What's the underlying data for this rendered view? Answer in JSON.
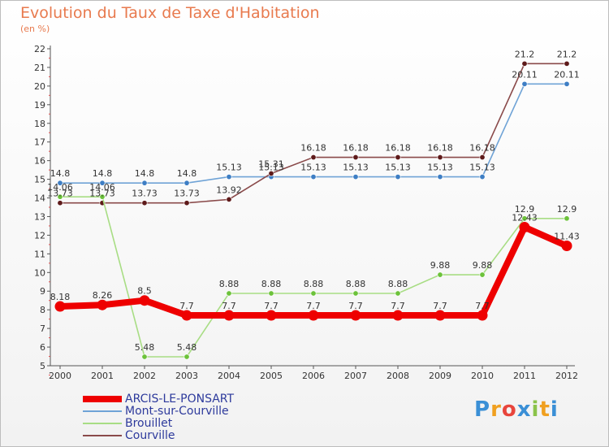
{
  "title": "Evolution du Taux de Taxe d'Habitation",
  "subtitle": "(en %)",
  "logo": {
    "text": "Proxiti",
    "colors": [
      "#3a8fd6",
      "#f0a020",
      "#e8453c",
      "#3a8fd6",
      "#8bc34a",
      "#f0a020",
      "#3a8fd6"
    ]
  },
  "chart_data": {
    "type": "line",
    "title": "Evolution du Taux de Taxe d'Habitation",
    "ylabel": "(en %)",
    "xlabel": "",
    "ylim": [
      5,
      22
    ],
    "yticks": [
      "5",
      "6",
      "7",
      "8",
      "9",
      "10",
      "11",
      "12",
      "13",
      "14",
      "15",
      "16",
      "17",
      "18",
      "19",
      "20",
      "21",
      "22"
    ],
    "categories": [
      "2000",
      "2001",
      "2002",
      "2003",
      "2004",
      "2005",
      "2006",
      "2007",
      "2008",
      "2009",
      "2010",
      "2011",
      "2012"
    ],
    "series": [
      {
        "name": "ARCIS-LE-PONSART",
        "color": "#ee0000",
        "thick": true,
        "values": [
          8.18,
          8.26,
          8.5,
          7.7,
          7.7,
          7.7,
          7.7,
          7.7,
          7.7,
          7.7,
          7.7,
          12.43,
          11.43
        ],
        "labels": [
          "8.18",
          "8.26",
          "8.5",
          "7.7",
          "7.7",
          "7.7",
          "7.7",
          "7.7",
          "7.7",
          "7.7",
          "7.7",
          "12.43",
          "11.43"
        ]
      },
      {
        "name": "Mont-sur-Courville",
        "color": "#6fa3d6",
        "dot": "#3e7ec4",
        "values": [
          14.8,
          14.8,
          14.8,
          14.8,
          15.13,
          15.13,
          15.13,
          15.13,
          15.13,
          15.13,
          15.13,
          20.11,
          20.11
        ],
        "labels": [
          "14.8",
          "14.8",
          "14.8",
          "14.8",
          "15.13",
          "15.13",
          "15.13",
          "15.13",
          "15.13",
          "15.13",
          "15.13",
          "20.11",
          "20.11"
        ]
      },
      {
        "name": "Brouillet",
        "color": "#a8dd84",
        "dot": "#6cc23a",
        "values": [
          14.06,
          14.06,
          5.48,
          5.48,
          8.88,
          8.88,
          8.88,
          8.88,
          8.88,
          9.88,
          9.88,
          12.9,
          12.9
        ],
        "labels": [
          "14.06",
          "14.06",
          "5.48",
          "5.48",
          "8.88",
          "8.88",
          "8.88",
          "8.88",
          "8.88",
          "9.88",
          "9.88",
          "12.9",
          "12.9"
        ]
      },
      {
        "name": "Courville",
        "color": "#8a4a4a",
        "dot": "#5e1a1a",
        "values": [
          13.73,
          13.73,
          13.73,
          13.73,
          13.92,
          15.31,
          16.18,
          16.18,
          16.18,
          16.18,
          16.18,
          21.2,
          21.2
        ],
        "labels": [
          "13.73",
          "13.73",
          "13.73",
          "13.73",
          "13.92",
          "15.31",
          "16.18",
          "16.18",
          "16.18",
          "16.18",
          "16.18",
          "21.2",
          "21.2"
        ]
      }
    ]
  }
}
